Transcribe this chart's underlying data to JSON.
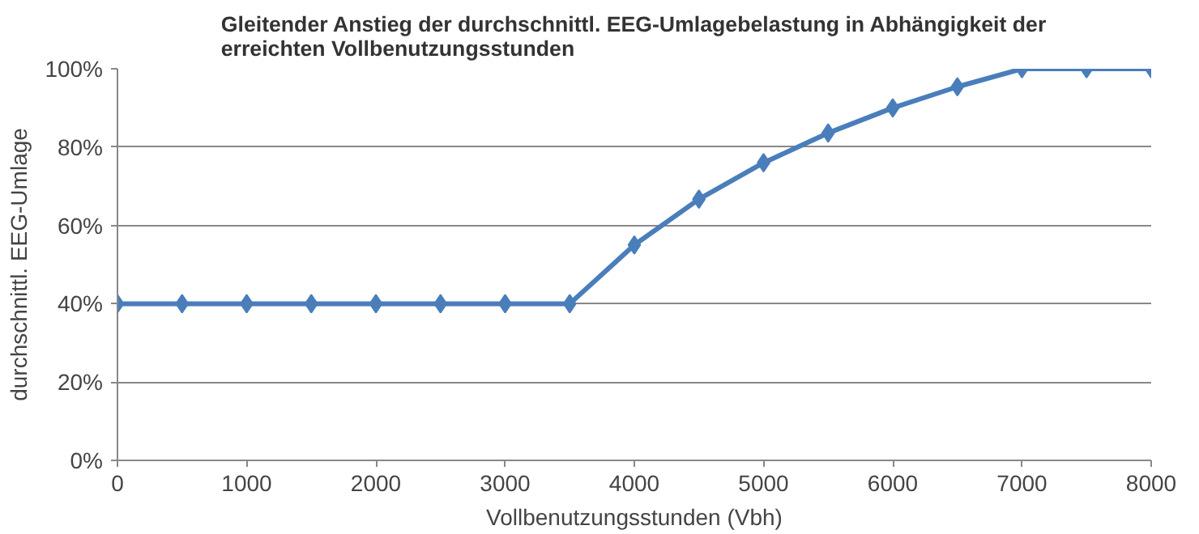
{
  "chart_data": {
    "type": "line",
    "title": "Gleitender Anstieg der durchschnittl. EEG-Umlagebelastung in Abhängigkeit der erreichten Vollbenutzungsstunden",
    "xlabel": "Vollbenutzungsstunden (Vbh)",
    "ylabel": "durchschnittl. EEG-Umlage",
    "x": [
      0,
      500,
      1000,
      1500,
      2000,
      2500,
      3000,
      3500,
      4000,
      4500,
      5000,
      5500,
      6000,
      6500,
      7000,
      7500,
      8000
    ],
    "series": [
      {
        "color": "#4a7ebb",
        "values": [
          40,
          40,
          40,
          40,
          40,
          40,
          40,
          40,
          55,
          66.7,
          76,
          83.6,
          90,
          95.4,
          100,
          100,
          100
        ]
      }
    ],
    "xlim": [
      0,
      8000
    ],
    "xticks": [
      0,
      1000,
      2000,
      3000,
      4000,
      5000,
      6000,
      7000,
      8000
    ],
    "ylim": [
      0,
      100
    ],
    "yticks": [
      {
        "value": 0,
        "label": "0%"
      },
      {
        "value": 20,
        "label": "20%"
      },
      {
        "value": 40,
        "label": "40%"
      },
      {
        "value": 60,
        "label": "60%"
      },
      {
        "value": 80,
        "label": "80%"
      },
      {
        "value": 100,
        "label": "100%"
      }
    ],
    "grid": "y",
    "marker": "diamond",
    "line_style": "solid"
  }
}
